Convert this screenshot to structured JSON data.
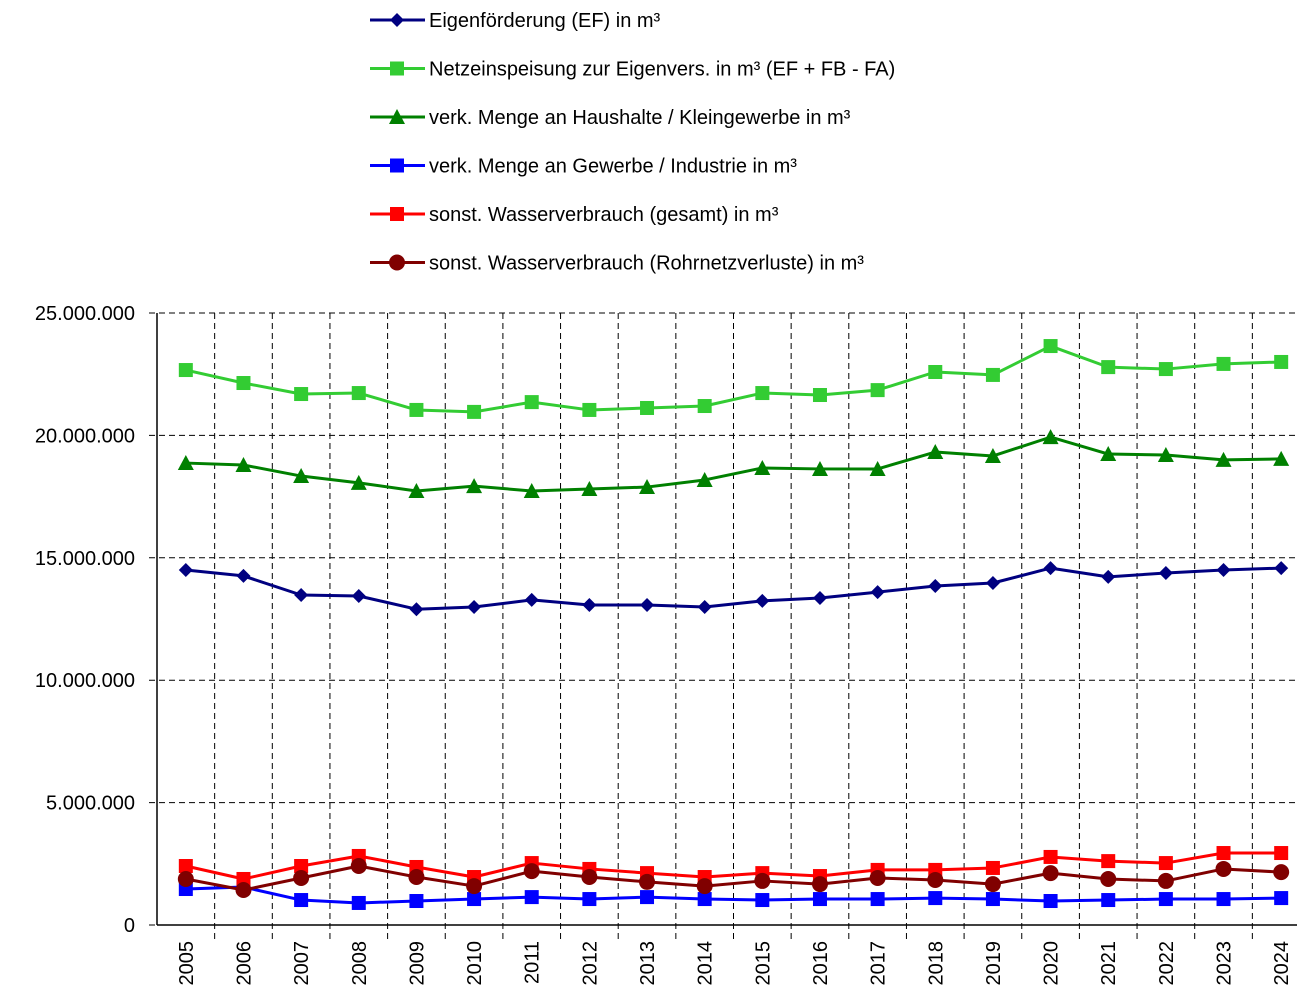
{
  "chart_data": {
    "type": "line",
    "categories": [
      "2005",
      "2006",
      "2007",
      "2008",
      "2009",
      "2010",
      "2011",
      "2012",
      "2013",
      "2014",
      "2015",
      "2016",
      "2017",
      "2018",
      "2019",
      "2020",
      "2021",
      "2022",
      "2023",
      "2024"
    ],
    "series": [
      {
        "name": "Eigenförderung (EF) in m³",
        "color": "#000080",
        "marker": "diamond",
        "values": [
          14500000,
          14260000,
          13480000,
          13440000,
          12900000,
          12990000,
          13280000,
          13070000,
          13070000,
          12990000,
          13240000,
          13360000,
          13600000,
          13850000,
          13970000,
          14580000,
          14220000,
          14380000,
          14500000,
          14580000
        ]
      },
      {
        "name": "Netzeinspeisung zur Eigenvers. in m³ (EF + FB - FA)",
        "color": "#33cc33",
        "marker": "square",
        "values": [
          22670000,
          22140000,
          21690000,
          21730000,
          21040000,
          20960000,
          21360000,
          21040000,
          21120000,
          21200000,
          21730000,
          21650000,
          21850000,
          22590000,
          22470000,
          23650000,
          22790000,
          22710000,
          22920000,
          23000000
        ]
      },
      {
        "name": "verk. Menge an Haushalte / Kleingewerbe in m³",
        "color": "#008000",
        "marker": "triangle",
        "values": [
          18870000,
          18790000,
          18340000,
          18060000,
          17730000,
          17930000,
          17730000,
          17810000,
          17890000,
          18180000,
          18670000,
          18630000,
          18630000,
          19320000,
          19160000,
          19930000,
          19240000,
          19200000,
          19000000,
          19040000
        ]
      },
      {
        "name": "verk. Menge an Gewerbe / Industrie in m³",
        "color": "#0000ff",
        "marker": "square",
        "values": [
          1470000,
          1550000,
          1020000,
          900000,
          980000,
          1060000,
          1140000,
          1060000,
          1140000,
          1060000,
          1020000,
          1060000,
          1060000,
          1100000,
          1060000,
          980000,
          1020000,
          1060000,
          1060000,
          1100000
        ]
      },
      {
        "name": "sonst. Wasserverbrauch (gesamt) in m³",
        "color": "#ff0000",
        "marker": "square",
        "values": [
          2410000,
          1880000,
          2410000,
          2820000,
          2370000,
          1960000,
          2530000,
          2290000,
          2120000,
          1960000,
          2120000,
          2000000,
          2250000,
          2250000,
          2330000,
          2780000,
          2610000,
          2530000,
          2940000,
          2940000
        ]
      },
      {
        "name": "sonst. Wasserverbrauch (Rohrnetzverluste) in m³",
        "color": "#800000",
        "marker": "circle",
        "values": [
          1880000,
          1430000,
          1920000,
          2410000,
          1960000,
          1590000,
          2200000,
          1960000,
          1760000,
          1590000,
          1800000,
          1670000,
          1920000,
          1840000,
          1670000,
          2120000,
          1880000,
          1800000,
          2290000,
          2160000
        ]
      }
    ],
    "ylim": [
      0,
      25000000
    ],
    "yticks": [
      0,
      {
        "value": 5000000,
        "label": "5.000.000"
      },
      {
        "value": 10000000,
        "label": "10.000.000"
      },
      {
        "value": 15000000,
        "label": "15.000.000"
      },
      {
        "value": 20000000,
        "label": "20.000.000"
      },
      {
        "value": 25000000,
        "label": "25.000.000"
      }
    ],
    "grid": true
  }
}
